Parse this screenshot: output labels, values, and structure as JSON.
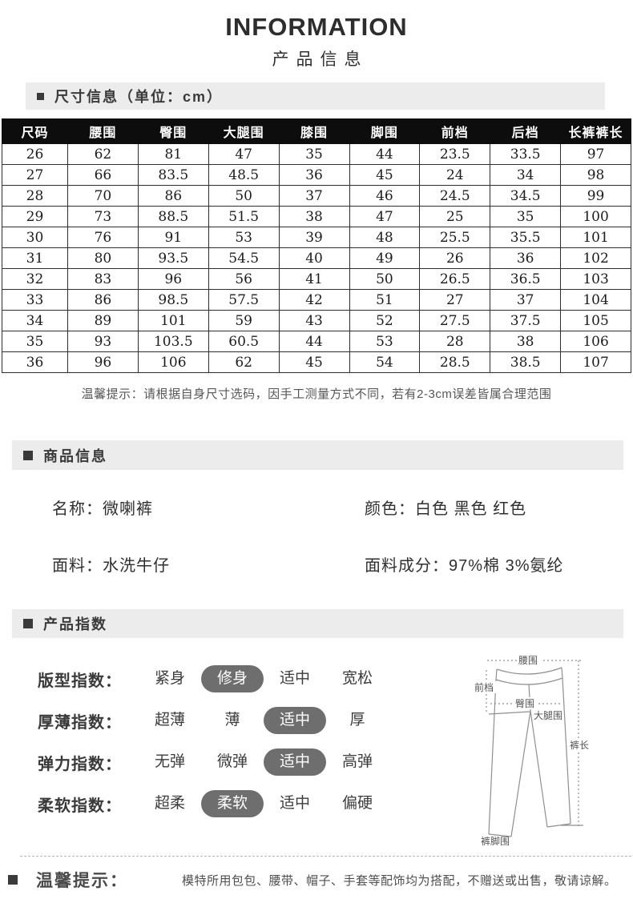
{
  "page": {
    "title": "INFORMATION",
    "subtitle": "产品信息"
  },
  "section_size": {
    "label": "尺寸信息（单位：cm）"
  },
  "size_table": {
    "columns": [
      "尺码",
      "腰围",
      "臀围",
      "大腿围",
      "膝围",
      "脚围",
      "前档",
      "后档",
      "长裤裤长"
    ],
    "rows": [
      [
        "26",
        "62",
        "81",
        "47",
        "35",
        "44",
        "23.5",
        "33.5",
        "97"
      ],
      [
        "27",
        "66",
        "83.5",
        "48.5",
        "36",
        "45",
        "24",
        "34",
        "98"
      ],
      [
        "28",
        "70",
        "86",
        "50",
        "37",
        "46",
        "24.5",
        "34.5",
        "99"
      ],
      [
        "29",
        "73",
        "88.5",
        "51.5",
        "38",
        "47",
        "25",
        "35",
        "100"
      ],
      [
        "30",
        "76",
        "91",
        "53",
        "39",
        "48",
        "25.5",
        "35.5",
        "101"
      ],
      [
        "31",
        "80",
        "93.5",
        "54.5",
        "40",
        "49",
        "26",
        "36",
        "102"
      ],
      [
        "32",
        "83",
        "96",
        "56",
        "41",
        "50",
        "26.5",
        "36.5",
        "103"
      ],
      [
        "33",
        "86",
        "98.5",
        "57.5",
        "42",
        "51",
        "27",
        "37",
        "104"
      ],
      [
        "34",
        "89",
        "101",
        "59",
        "43",
        "52",
        "27.5",
        "37.5",
        "105"
      ],
      [
        "35",
        "93",
        "103.5",
        "60.5",
        "44",
        "53",
        "28",
        "38",
        "106"
      ],
      [
        "36",
        "96",
        "106",
        "62",
        "45",
        "54",
        "28.5",
        "38.5",
        "107"
      ]
    ],
    "note": "温馨提示：请根据自身尺寸选码，因手工测量方式不同，若有2-3cm误差皆属合理范围"
  },
  "section_product": {
    "label": "商品信息"
  },
  "product_info": {
    "rows": [
      [
        {
          "label": "名称：",
          "value": "微喇裤"
        },
        {
          "label": "颜色：",
          "value": "白色 黑色 红色"
        }
      ],
      [
        {
          "label": "面料：",
          "value": "水洗牛仔"
        },
        {
          "label": "面料成分：",
          "value": "97%棉 3%氨纶"
        }
      ]
    ]
  },
  "section_index": {
    "label": "产品指数"
  },
  "product_index": {
    "rows": [
      {
        "label": "版型指数：",
        "options": [
          "紧身",
          "修身",
          "适中",
          "宽松"
        ],
        "selected": 1
      },
      {
        "label": "厚薄指数：",
        "options": [
          "超薄",
          "薄",
          "适中",
          "厚"
        ],
        "selected": 2
      },
      {
        "label": "弹力指数：",
        "options": [
          "无弹",
          "微弹",
          "适中",
          "高弹"
        ],
        "selected": 2
      },
      {
        "label": "柔软指数：",
        "options": [
          "超柔",
          "柔软",
          "适中",
          "偏硬"
        ],
        "selected": 1
      }
    ]
  },
  "diagram": {
    "labels": {
      "waist": "腰围",
      "front_rise": "前档",
      "hip": "臀围",
      "thigh": "大腿围",
      "length": "裤长",
      "hem": "裤脚围"
    }
  },
  "footer_note": {
    "label": "温馨提示：",
    "text": "模特所用包包、腰带、帽子、手套等配饰均为搭配，不赠送或出售，敬请谅解。"
  },
  "colors": {
    "table_header_bg": "#0d0d0d",
    "section_bar_bg": "#ececec",
    "selected_pill_bg": "#6e6e6e",
    "text_dark": "#2f2f2f"
  }
}
